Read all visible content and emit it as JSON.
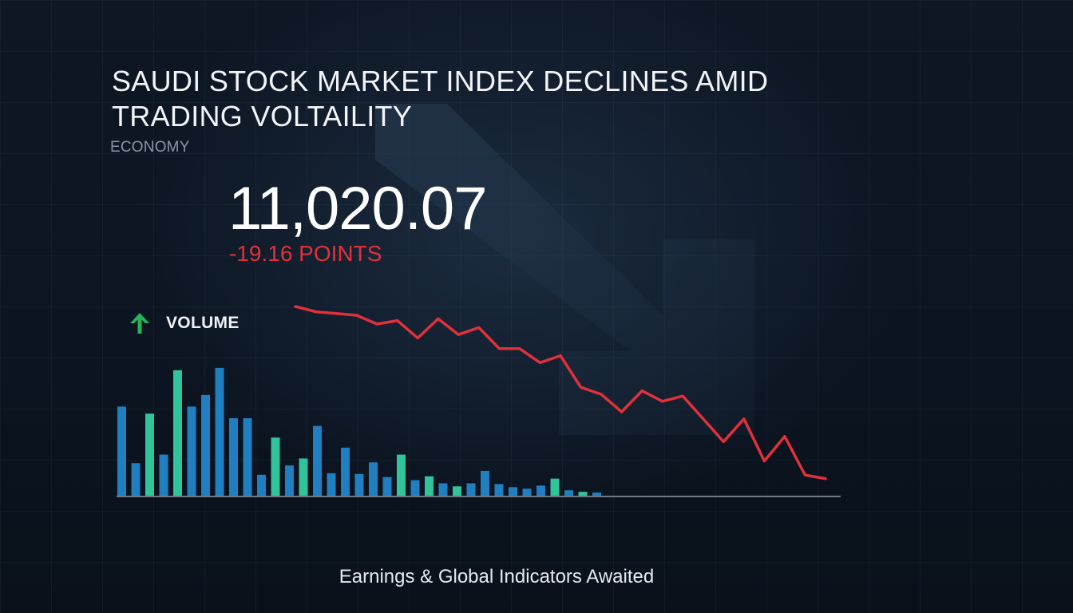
{
  "headline": "SAUDI STOCK MARKET INDEX DECLINES AMID TRADING VOLTAILITY",
  "category": "ECONOMY",
  "index": {
    "value": "11,020.07",
    "change": "-19.16 POINTS"
  },
  "volume_label": "VOLUME",
  "footer": "Earnings & Global Indicators Awaited",
  "colors": {
    "background": "#0c1420",
    "decline": "#e0313a",
    "volume_up": "#2fc49a",
    "volume_down": "#1f7fc0",
    "accent_up_icon": "#23b45a"
  },
  "icons": {
    "volume_icon": "arrow-up-icon",
    "background_icon": "arrow-down-icon"
  },
  "chart_data": [
    {
      "type": "line",
      "name": "index-trend",
      "xlim": [
        0,
        26
      ],
      "ylim": [
        0,
        100
      ],
      "x": [
        0,
        1,
        2,
        3,
        4,
        5,
        6,
        7,
        8,
        9,
        10,
        11,
        12,
        13,
        14,
        15,
        16,
        17,
        18,
        19,
        20,
        21,
        22,
        23,
        24,
        25,
        26
      ],
      "values": [
        100,
        97,
        96,
        95,
        90,
        92,
        82,
        93,
        84,
        88,
        76,
        76,
        68,
        72,
        54,
        50,
        40,
        52,
        46,
        49,
        36,
        23,
        36,
        12,
        26,
        4,
        2
      ],
      "grid": true
    },
    {
      "type": "bar",
      "name": "trading-volume",
      "ylim": [
        0,
        170
      ],
      "values": [
        115,
        42,
        106,
        53,
        162,
        115,
        130,
        165,
        100,
        100,
        27,
        75,
        39,
        48,
        90,
        29,
        62,
        28,
        43,
        24,
        53,
        20,
        25,
        16,
        12,
        16,
        32,
        15,
        11,
        9,
        13,
        22,
        7,
        5,
        4
      ],
      "direction": [
        "down",
        "down",
        "up",
        "down",
        "up",
        "down",
        "down",
        "down",
        "down",
        "down",
        "down",
        "up",
        "down",
        "up",
        "down",
        "down",
        "down",
        "down",
        "down",
        "down",
        "up",
        "down",
        "up",
        "down",
        "up",
        "down",
        "down",
        "down",
        "down",
        "down",
        "down",
        "up",
        "down",
        "up",
        "down"
      ]
    }
  ]
}
